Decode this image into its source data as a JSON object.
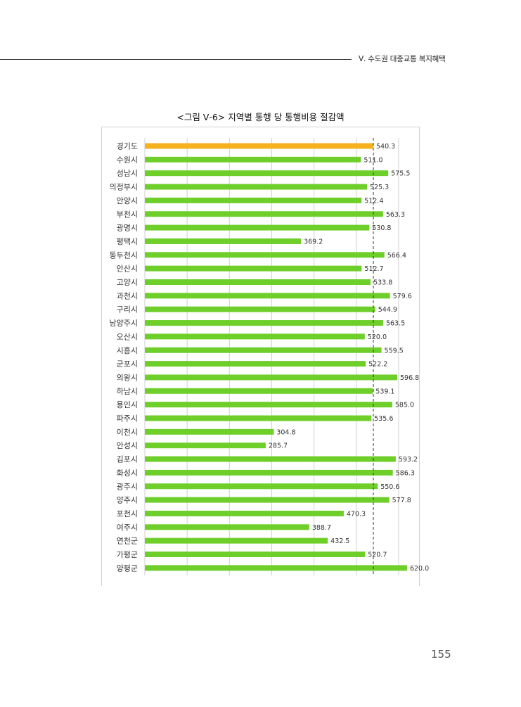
{
  "header": {
    "section": "Ⅴ. 수도권 대중교통 복지혜택"
  },
  "figure": {
    "title": "<그림 Ⅴ-6> 지역별 통행 당 통행비용 절감액"
  },
  "page_number": "155",
  "colors": {
    "highlight": "#F5B11E",
    "bar": "#6FCF2A",
    "grid": "#cfcfcf",
    "reference_line": "#333333"
  },
  "chart_data": {
    "type": "bar",
    "orientation": "horizontal",
    "categories": [
      "경기도",
      "수원시",
      "성남시",
      "의정부시",
      "안양시",
      "부천시",
      "광명시",
      "평택시",
      "동두천시",
      "안산시",
      "고양시",
      "과천시",
      "구리시",
      "남양주시",
      "오산시",
      "시흥시",
      "군포시",
      "의왕시",
      "하남시",
      "용인시",
      "파주시",
      "이천시",
      "안성시",
      "김포시",
      "화성시",
      "광주시",
      "양주시",
      "포천시",
      "여주시",
      "연천군",
      "가평군",
      "양평군"
    ],
    "values": [
      540.3,
      511.0,
      575.5,
      525.3,
      512.4,
      563.3,
      530.8,
      369.2,
      566.4,
      512.7,
      533.8,
      579.6,
      544.9,
      563.5,
      520.0,
      559.5,
      522.2,
      596.8,
      539.1,
      585.0,
      535.6,
      304.8,
      285.7,
      593.2,
      586.3,
      550.6,
      577.8,
      470.3,
      388.7,
      432.5,
      520.7,
      620.0
    ],
    "value_labels": [
      "540.3",
      "511.0",
      "575.5",
      "525.3",
      "512.4",
      "563.3",
      "530.8",
      "369.2",
      "566.4",
      "512.7",
      "533.8",
      "579.6",
      "544.9",
      "563.5",
      "520.0",
      "559.5",
      "522.2",
      "596.8",
      "539.1",
      "585.0",
      "535.6",
      "304.8",
      "285.7",
      "593.2",
      "586.3",
      "550.6",
      "577.8",
      "470.3",
      "388.7",
      "432.5",
      "520.7",
      "620.0"
    ],
    "highlight_category": "경기도",
    "reference_line": 540.3,
    "xlim": [
      0,
      650
    ],
    "x_gridlines": [
      0,
      100,
      200,
      300,
      400,
      500,
      600
    ],
    "grid": true,
    "legend": "none"
  }
}
